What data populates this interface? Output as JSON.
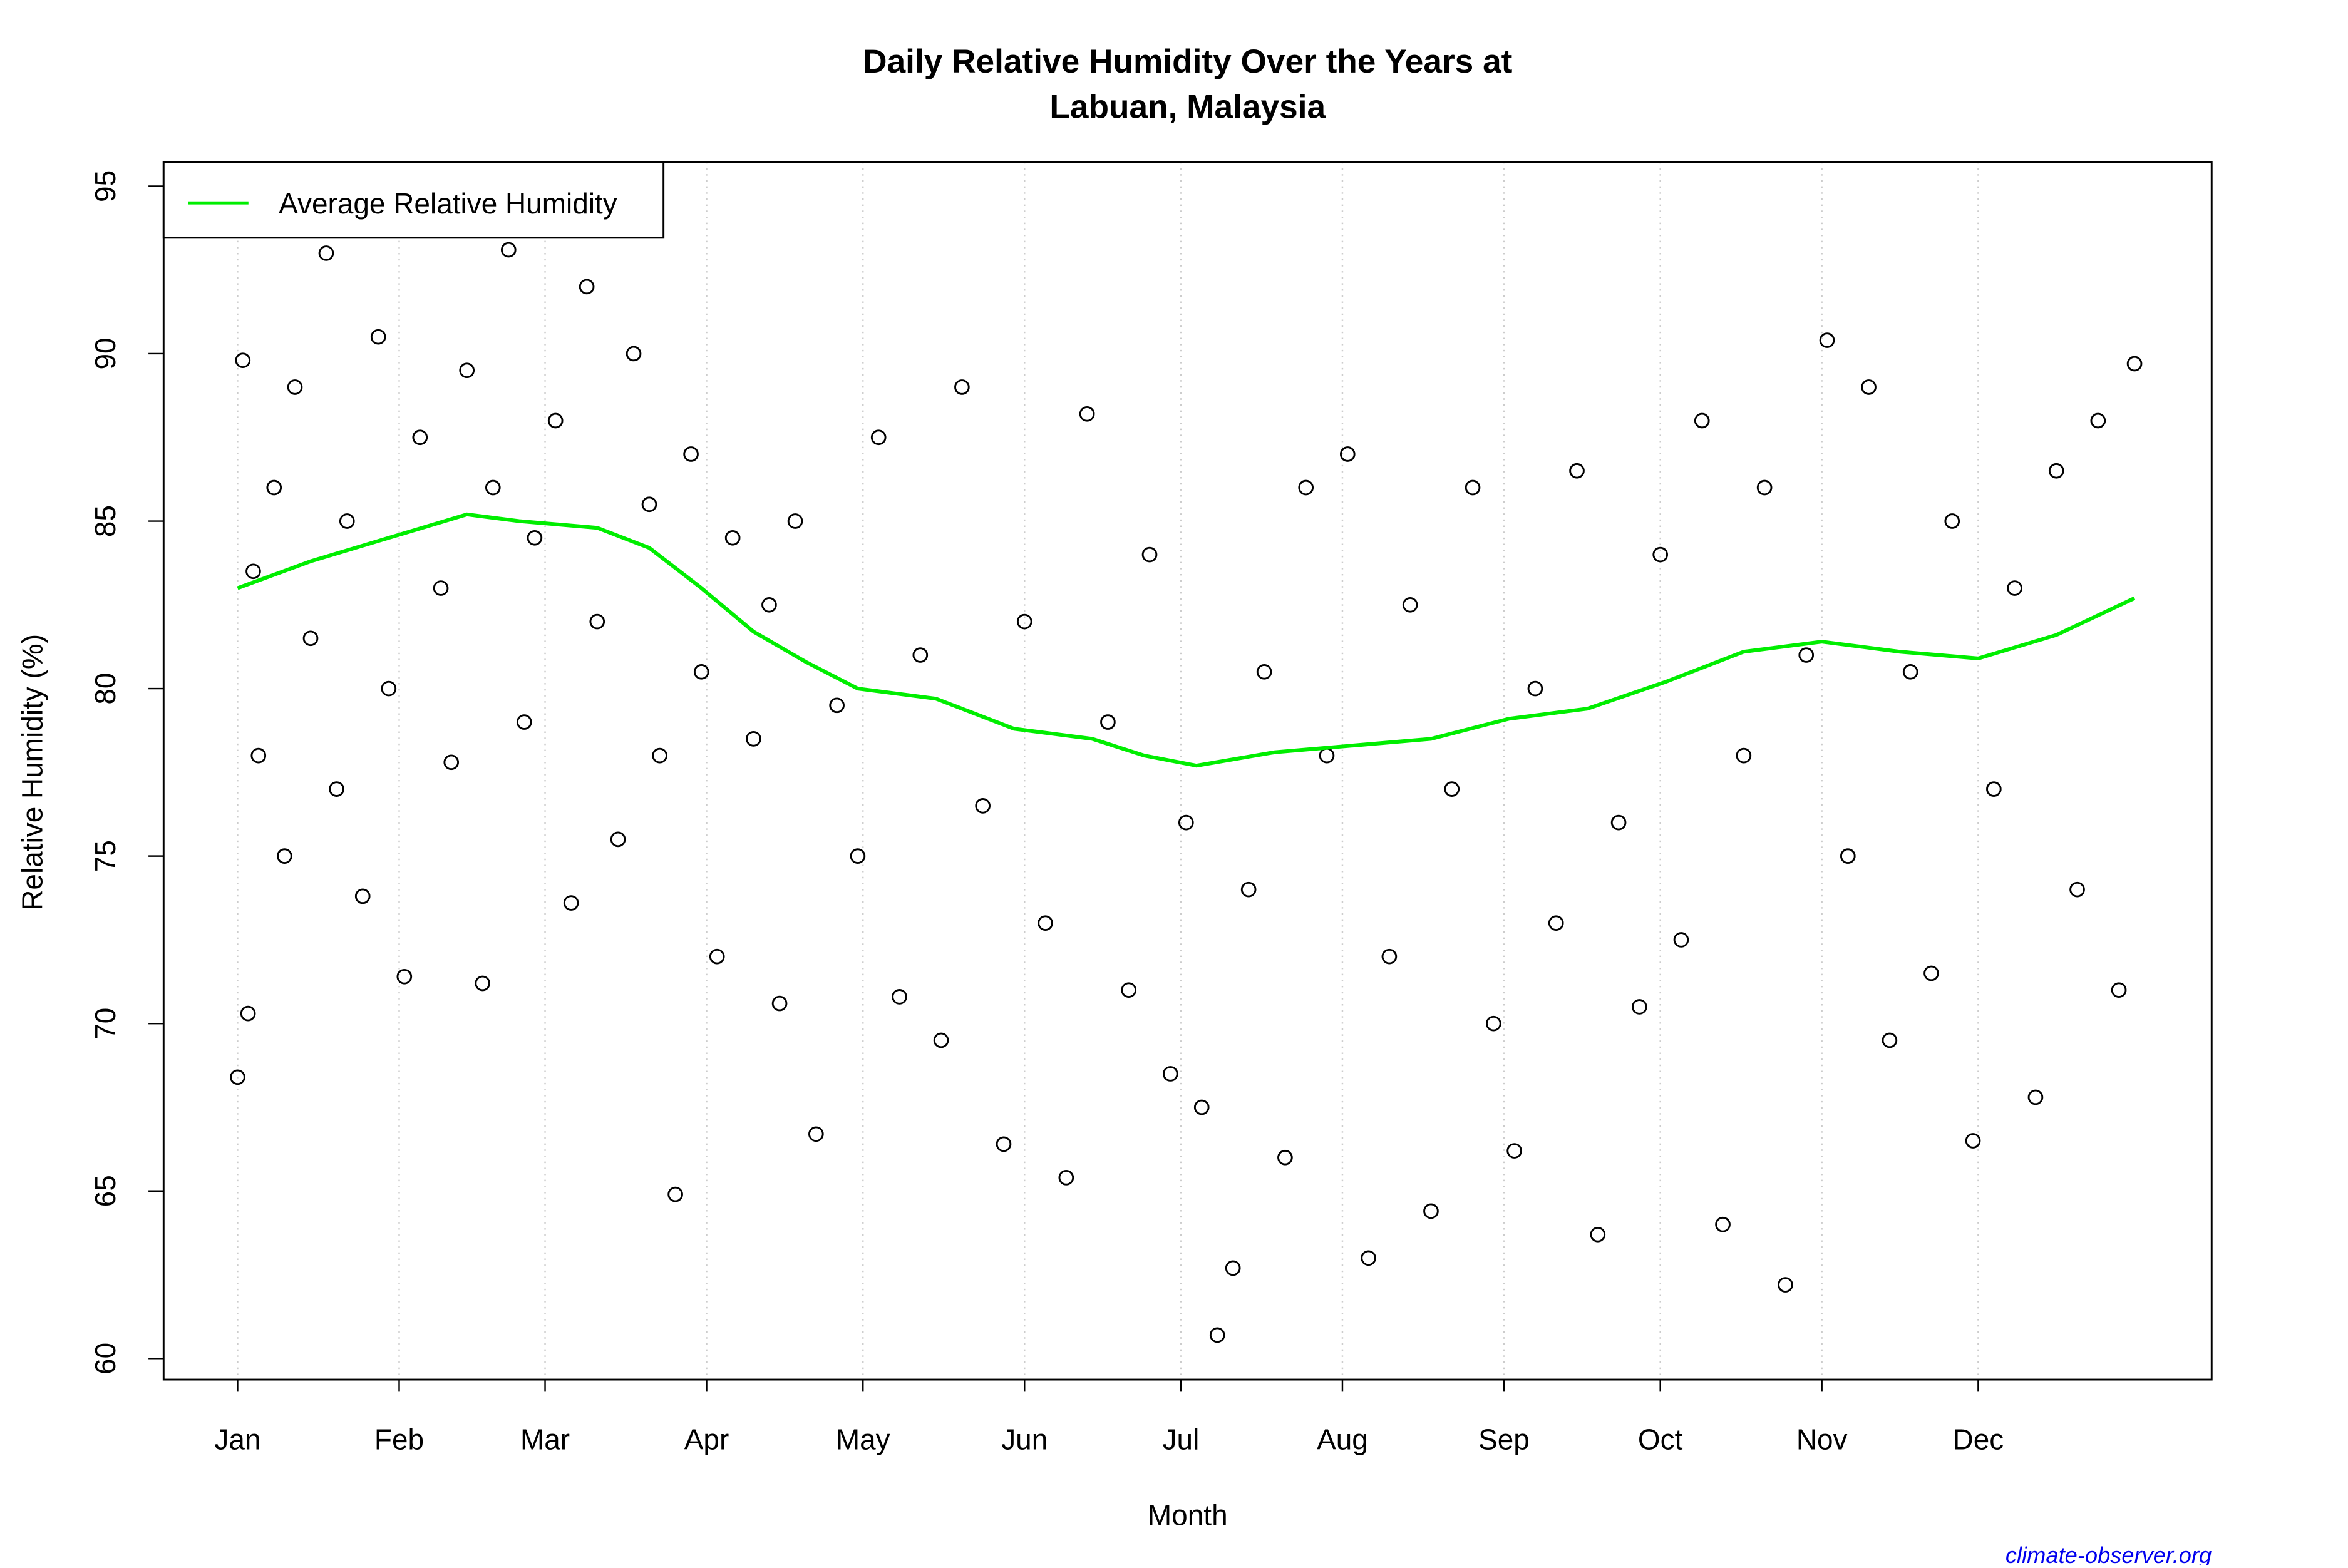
{
  "chart_data": {
    "type": "scatter",
    "title": [
      "Daily Relative Humidity Over the Years at",
      "Labuan, Malaysia"
    ],
    "x_label": "Month",
    "y_label": "Relative Humidity  (%)",
    "source": "climate-observer.org",
    "xlim": [
      -13.2,
      379.8
    ],
    "ylim": [
      59.37,
      95.72
    ],
    "xticks": [
      {
        "value": 1,
        "label": "Jan"
      },
      {
        "value": 32,
        "label": "Feb"
      },
      {
        "value": 60,
        "label": "Mar"
      },
      {
        "value": 91,
        "label": "Apr"
      },
      {
        "value": 121,
        "label": "May"
      },
      {
        "value": 152,
        "label": "Jun"
      },
      {
        "value": 182,
        "label": "Jul"
      },
      {
        "value": 213,
        "label": "Aug"
      },
      {
        "value": 244,
        "label": "Sep"
      },
      {
        "value": 274,
        "label": "Oct"
      },
      {
        "value": 305,
        "label": "Nov"
      },
      {
        "value": 335,
        "label": "Dec"
      }
    ],
    "yticks": [
      60,
      65,
      70,
      75,
      80,
      85,
      90,
      95
    ],
    "grid": true,
    "legend": "top-left",
    "series": [
      {
        "name": "Average Relative Humidity",
        "kind": "line",
        "color": "#00ee00",
        "x": [
          1,
          15,
          30,
          45,
          55,
          70,
          80,
          90,
          100,
          110,
          120,
          135,
          150,
          165,
          175,
          185,
          200,
          215,
          230,
          245,
          260,
          275,
          290,
          305,
          320,
          335,
          350,
          365
        ],
        "values": [
          83.0,
          83.8,
          84.5,
          85.2,
          85.0,
          84.8,
          84.2,
          83.0,
          81.7,
          80.8,
          80.0,
          79.7,
          78.8,
          78.5,
          78.0,
          77.7,
          78.1,
          78.3,
          78.5,
          79.1,
          79.4,
          80.2,
          81.1,
          81.4,
          81.1,
          80.9,
          81.6,
          82.7
        ]
      },
      {
        "kind": "points",
        "color": "#000000",
        "x": [
          1,
          2,
          3,
          4,
          5,
          8,
          10,
          12,
          15,
          18,
          20,
          22,
          25,
          28,
          30,
          33,
          36,
          40,
          42,
          45,
          48,
          50,
          53,
          56,
          58,
          62,
          65,
          68,
          70,
          74,
          77,
          80,
          82,
          85,
          88,
          90,
          93,
          96,
          100,
          103,
          105,
          108,
          112,
          116,
          120,
          124,
          128,
          132,
          136,
          140,
          144,
          148,
          152,
          156,
          160,
          164,
          168,
          172,
          176,
          180,
          183,
          186,
          189,
          192,
          195,
          198,
          202,
          206,
          210,
          214,
          218,
          222,
          226,
          230,
          234,
          238,
          242,
          246,
          250,
          254,
          258,
          262,
          266,
          270,
          274,
          278,
          282,
          286,
          290,
          294,
          298,
          302,
          306,
          310,
          314,
          318,
          322,
          326,
          330,
          334,
          338,
          342,
          346,
          350,
          354,
          358,
          362,
          365
        ],
        "values": [
          68.4,
          89.8,
          70.3,
          83.5,
          78.0,
          86.0,
          75.0,
          89.0,
          81.5,
          93.0,
          77.0,
          85.0,
          73.8,
          90.5,
          80.0,
          71.4,
          87.5,
          83.0,
          77.8,
          89.5,
          71.2,
          86.0,
          93.1,
          79.0,
          84.5,
          88.0,
          73.6,
          92.0,
          82.0,
          75.5,
          90.0,
          85.5,
          78.0,
          64.9,
          87.0,
          80.5,
          72.0,
          84.5,
          78.5,
          82.5,
          70.6,
          85.0,
          66.7,
          79.5,
          75.0,
          87.5,
          70.8,
          81.0,
          69.5,
          89.0,
          76.5,
          66.4,
          82.0,
          73.0,
          65.4,
          88.2,
          79.0,
          71.0,
          84.0,
          68.5,
          76.0,
          67.5,
          60.7,
          62.7,
          74.0,
          80.5,
          66.0,
          86.0,
          78.0,
          87.0,
          63.0,
          72.0,
          82.5,
          64.4,
          77.0,
          86.0,
          70.0,
          66.2,
          80.0,
          73.0,
          86.5,
          63.7,
          76.0,
          70.5,
          84.0,
          72.5,
          88.0,
          64.0,
          78.0,
          86.0,
          62.2,
          81.0,
          90.4,
          75.0,
          89.0,
          69.5,
          80.5,
          71.5,
          85.0,
          66.5,
          77.0,
          83.0,
          67.8,
          86.5,
          74.0,
          88.0,
          71.0,
          89.7
        ]
      }
    ]
  }
}
